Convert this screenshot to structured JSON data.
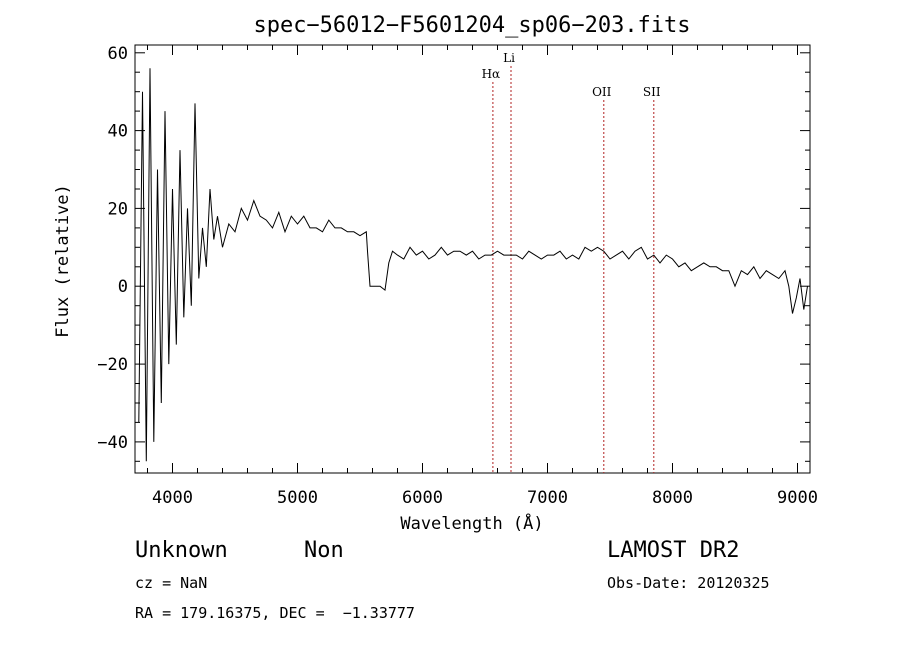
{
  "chart_data": {
    "type": "line",
    "title": "spec−56012−F5601204_sp06−203.fits",
    "xlabel": "Wavelength (Å)",
    "ylabel": "Flux (relative)",
    "xlim": [
      3700,
      9100
    ],
    "ylim": [
      -48,
      62
    ],
    "xticks": [
      4000,
      5000,
      6000,
      7000,
      8000,
      9000
    ],
    "yticks": [
      -40,
      -20,
      0,
      20,
      40,
      60
    ],
    "ytick_labels": [
      "−40",
      "−20",
      "0",
      "20",
      "40",
      "60"
    ],
    "series": [
      {
        "x": [
          3730,
          3760,
          3790,
          3820,
          3850,
          3880,
          3910,
          3940,
          3970,
          4000,
          4030,
          4060,
          4090,
          4120,
          4150,
          4180,
          4210,
          4240,
          4270,
          4300,
          4330,
          4360,
          4400,
          4450,
          4500,
          4550,
          4600,
          4650,
          4700,
          4750,
          4800,
          4850,
          4900,
          4950,
          5000,
          5050,
          5100,
          5150,
          5200,
          5250,
          5300,
          5350,
          5400,
          5450,
          5500,
          5550,
          5560,
          5580,
          5620,
          5660,
          5700,
          5730,
          5760,
          5800,
          5850,
          5900,
          5950,
          6000,
          6050,
          6100,
          6150,
          6200,
          6250,
          6300,
          6350,
          6400,
          6450,
          6500,
          6550,
          6600,
          6650,
          6700,
          6750,
          6800,
          6850,
          6900,
          6950,
          7000,
          7050,
          7100,
          7150,
          7200,
          7250,
          7300,
          7350,
          7400,
          7450,
          7500,
          7550,
          7600,
          7650,
          7700,
          7750,
          7800,
          7850,
          7900,
          7950,
          8000,
          8050,
          8100,
          8150,
          8200,
          8250,
          8300,
          8350,
          8400,
          8450,
          8500,
          8550,
          8600,
          8650,
          8700,
          8750,
          8800,
          8850,
          8900,
          8930,
          8960,
          8990,
          9020,
          9050,
          9080
        ],
        "y": [
          -35,
          50,
          -45,
          56,
          -40,
          30,
          -30,
          45,
          -20,
          25,
          -15,
          35,
          -8,
          20,
          -5,
          47,
          2,
          15,
          5,
          25,
          12,
          18,
          10,
          16,
          14,
          20,
          17,
          22,
          18,
          17,
          15,
          19,
          14,
          18,
          16,
          18,
          15,
          15,
          14,
          17,
          15,
          15,
          14,
          14,
          13,
          14,
          9,
          0,
          0,
          0,
          -1,
          6,
          9,
          8,
          7,
          10,
          8,
          9,
          7,
          8,
          10,
          8,
          9,
          9,
          8,
          9,
          7,
          8,
          8,
          9,
          8,
          8,
          8,
          7,
          9,
          8,
          7,
          8,
          8,
          9,
          7,
          8,
          7,
          10,
          9,
          10,
          9,
          7,
          8,
          9,
          7,
          9,
          10,
          7,
          8,
          6,
          8,
          7,
          5,
          6,
          4,
          5,
          6,
          5,
          5,
          4,
          4,
          0,
          4,
          3,
          5,
          2,
          4,
          3,
          2,
          4,
          0,
          -7,
          -3,
          2,
          -6,
          0
        ]
      }
    ],
    "lines": [
      {
        "label": "Hα",
        "x": 6563
      },
      {
        "label": "Li",
        "x": 6708
      },
      {
        "label": "OII",
        "x": 7450
      },
      {
        "label": "SII",
        "x": 7850
      }
    ],
    "line_color": "#b22222"
  },
  "footer": {
    "class_label": "Unknown",
    "subclass_label": "Non",
    "survey": "LAMOST DR2",
    "cz": "cz = NaN",
    "obs_date": "Obs-Date: 20120325",
    "coords": "RA = 179.16375, DEC =  −1.33777"
  }
}
